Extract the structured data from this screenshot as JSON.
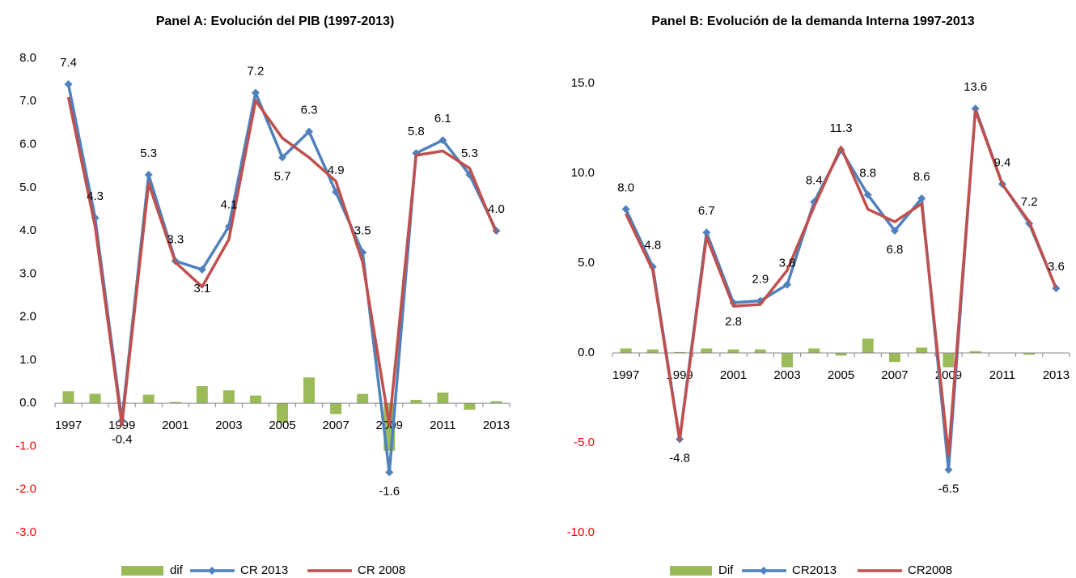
{
  "chart_data": [
    {
      "type": "line",
      "title": "Panel A: Evolución del PIB (1997-2013)",
      "categories": [
        "1997",
        null,
        "1999",
        null,
        "2001",
        null,
        "2003",
        null,
        "2005",
        null,
        "2007",
        null,
        "2009",
        null,
        "2011",
        null,
        "2013"
      ],
      "ylim": [
        -3,
        8
      ],
      "yticks": [
        {
          "value": -3,
          "label": "-3.0"
        },
        {
          "value": -2,
          "label": "-2.0"
        },
        {
          "value": -1,
          "label": "-1.0"
        },
        {
          "value": 0,
          "label": "0.0"
        },
        {
          "value": 1,
          "label": "1.0"
        },
        {
          "value": 2,
          "label": "2.0"
        },
        {
          "value": 3,
          "label": "3.0"
        },
        {
          "value": 4,
          "label": "4.0"
        },
        {
          "value": 5,
          "label": "5.0"
        },
        {
          "value": 6,
          "label": "6.0"
        },
        {
          "value": 7,
          "label": "7.0"
        },
        {
          "value": 8,
          "label": "8.0"
        }
      ],
      "negative_tick_color": "#ff0000",
      "series": [
        {
          "name": "dif",
          "type": "bar",
          "color": "#9bbb59",
          "values": [
            0.28,
            0.22,
            0.02,
            0.2,
            0.03,
            0.4,
            0.3,
            0.18,
            -0.45,
            0.6,
            -0.25,
            0.22,
            -1.1,
            0.08,
            0.25,
            -0.15,
            0.05
          ]
        },
        {
          "name": "CR 2013",
          "type": "line",
          "marker": "diamond",
          "color": "#4f81bd",
          "values": [
            7.4,
            4.3,
            -0.4,
            5.3,
            3.3,
            3.1,
            4.1,
            7.2,
            5.7,
            6.3,
            4.9,
            3.5,
            -1.6,
            5.8,
            6.1,
            5.3,
            4.0
          ],
          "value_labels": [
            "7.4",
            "4.3",
            "-0.4",
            "5.3",
            "3.3",
            "3.1",
            "4.1",
            "7.2",
            "5.7",
            "6.3",
            "4.9",
            "3.5",
            "-1.6",
            "5.8",
            "6.1",
            "5.3",
            "4.0"
          ]
        },
        {
          "name": "CR 2008",
          "type": "line",
          "color": "#c0504d",
          "values": [
            7.1,
            4.1,
            -0.5,
            5.1,
            3.27,
            2.7,
            3.8,
            7.02,
            6.15,
            5.7,
            5.15,
            3.28,
            -0.5,
            5.75,
            5.85,
            5.45,
            3.95
          ]
        }
      ]
    },
    {
      "type": "line",
      "title": "Panel B: Evolución de la demanda Interna 1997-2013",
      "categories": [
        "1997",
        null,
        "1999",
        null,
        "2001",
        null,
        "2003",
        null,
        "2005",
        null,
        "2007",
        null,
        "2009",
        null,
        "2011",
        null,
        "2013"
      ],
      "ylim": [
        -10,
        15
      ],
      "yticks": [
        {
          "value": -10,
          "label": "-10.0"
        },
        {
          "value": -5,
          "label": "-5.0"
        },
        {
          "value": 0,
          "label": "0.0"
        },
        {
          "value": 5,
          "label": "5.0"
        },
        {
          "value": 10,
          "label": "10.0"
        },
        {
          "value": 15,
          "label": "15.0"
        }
      ],
      "negative_tick_color": "#ff0000",
      "series": [
        {
          "name": "Dif",
          "type": "bar",
          "color": "#9bbb59",
          "values": [
            0.25,
            0.2,
            0.05,
            0.25,
            0.2,
            0.2,
            -0.8,
            0.25,
            -0.15,
            0.8,
            -0.5,
            0.3,
            -0.8,
            0.1,
            0.02,
            -0.1,
            0.02
          ]
        },
        {
          "name": "CR2013",
          "type": "line",
          "marker": "diamond",
          "color": "#4f81bd",
          "values": [
            8.0,
            4.8,
            -4.8,
            6.7,
            2.8,
            2.9,
            3.8,
            8.4,
            11.3,
            8.8,
            6.8,
            8.6,
            -6.5,
            13.6,
            9.4,
            7.2,
            3.6
          ],
          "value_labels": [
            "8.0",
            "4.8",
            "-4.8",
            "6.7",
            "2.8",
            "2.9",
            "3.8",
            "8.4",
            "11.3",
            "8.8",
            "6.8",
            "8.6",
            "-6.5",
            "13.6",
            "9.4",
            "7.2",
            "3.6"
          ]
        },
        {
          "name": "CR2008",
          "type": "line",
          "color": "#c0504d",
          "values": [
            7.75,
            4.6,
            -4.85,
            6.45,
            2.6,
            2.7,
            4.6,
            8.15,
            11.45,
            8.0,
            7.3,
            8.3,
            -5.7,
            13.5,
            9.38,
            7.3,
            3.58
          ]
        }
      ]
    }
  ]
}
